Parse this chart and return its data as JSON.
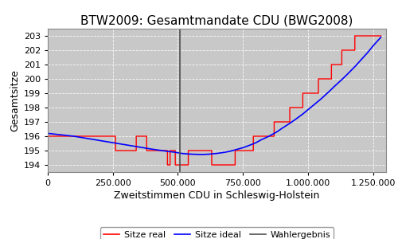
{
  "title": "BTW2009: Gesamtmandate CDU (BWG2008)",
  "xlabel": "Zweitstimmen CDU in Schleswig-Holstein",
  "ylabel": "Gesamtsitze",
  "bg_color": "#ffffff",
  "plot_bg_color": "#c8c8c8",
  "wahlergebnis_x": 508000,
  "xlim": [
    0,
    1300000
  ],
  "ylim": [
    193.5,
    203.5
  ],
  "yticks": [
    194,
    195,
    196,
    197,
    198,
    199,
    200,
    201,
    202,
    203
  ],
  "xticks": [
    0,
    250000,
    500000,
    750000,
    1000000,
    1250000
  ],
  "line_real_color": "red",
  "line_ideal_color": "blue",
  "vline_color": "#505050",
  "legend_labels": [
    "Sitze real",
    "Sitze ideal",
    "Wahlergebnis"
  ],
  "ideal_x": [
    0,
    25000,
    50000,
    75000,
    100000,
    150000,
    200000,
    250000,
    300000,
    350000,
    400000,
    450000,
    490000,
    508000,
    520000,
    550000,
    580000,
    600000,
    620000,
    650000,
    680000,
    700000,
    720000,
    750000,
    780000,
    800000,
    820000,
    850000,
    880000,
    900000,
    930000,
    950000,
    980000,
    1000000,
    1030000,
    1050000,
    1080000,
    1100000,
    1130000,
    1150000,
    1180000,
    1200000,
    1230000,
    1250000,
    1280000
  ],
  "ideal_y": [
    196.2,
    196.15,
    196.1,
    196.05,
    196.0,
    195.85,
    195.7,
    195.55,
    195.4,
    195.25,
    195.1,
    194.97,
    194.88,
    194.82,
    194.79,
    194.75,
    194.73,
    194.73,
    194.75,
    194.8,
    194.88,
    194.95,
    195.05,
    195.2,
    195.4,
    195.55,
    195.75,
    196.0,
    196.3,
    196.55,
    196.9,
    197.15,
    197.55,
    197.85,
    198.3,
    198.6,
    199.1,
    199.45,
    199.95,
    200.3,
    200.85,
    201.25,
    201.85,
    202.3,
    202.9
  ],
  "real_x": [
    0,
    260000,
    260001,
    340000,
    340001,
    380000,
    380001,
    460000,
    460001,
    470000,
    470001,
    490000,
    490001,
    508000,
    540000,
    540001,
    580000,
    620000,
    630000,
    630001,
    680000,
    720000,
    720001,
    770000,
    790000,
    790001,
    840000,
    870000,
    870001,
    920000,
    930000,
    930001,
    970000,
    980000,
    980001,
    1020000,
    1040000,
    1040001,
    1080000,
    1090000,
    1090001,
    1130000,
    1130001,
    1160000,
    1180000,
    1180001,
    1250000,
    1280000
  ],
  "real_y": [
    196,
    196,
    195,
    195,
    196,
    196,
    195,
    195,
    194,
    194,
    195,
    195,
    194,
    194,
    194,
    195,
    195,
    195,
    195,
    194,
    194,
    194,
    195,
    195,
    195,
    196,
    196,
    196,
    197,
    197,
    197,
    198,
    198,
    198,
    199,
    199,
    199,
    200,
    200,
    200,
    201,
    201,
    202,
    202,
    202,
    203,
    203,
    203
  ]
}
